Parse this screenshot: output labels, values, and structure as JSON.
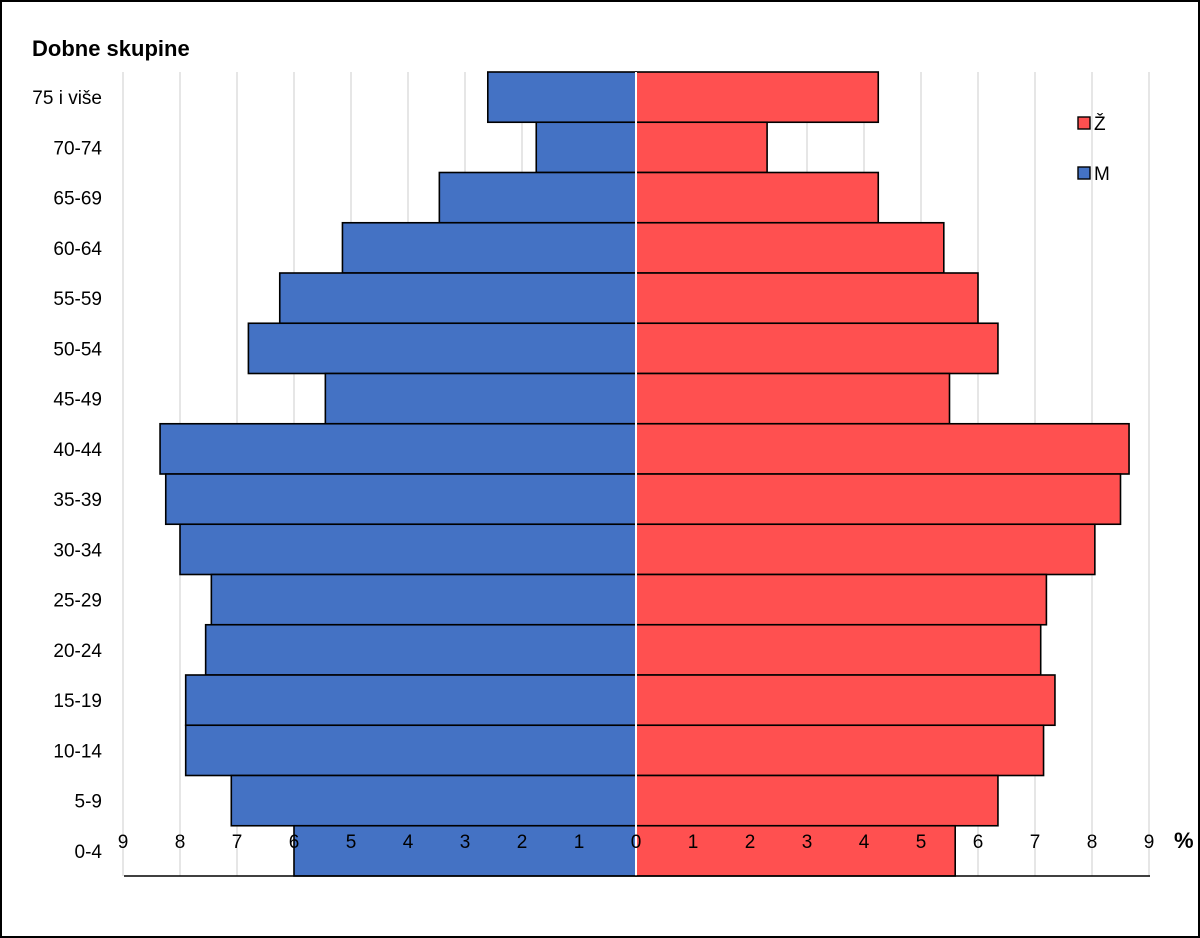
{
  "chart_data": {
    "type": "bar",
    "orientation": "horizontal-population-pyramid",
    "title": "Dobne skupine",
    "unit_label": "%",
    "categories": [
      "75 i više",
      "70-74",
      "65-69",
      "60-64",
      "55-59",
      "50-54",
      "45-49",
      "40-44",
      "35-39",
      "30-34",
      "25-29",
      "20-24",
      "15-19",
      "10-14",
      "5-9",
      "0-4"
    ],
    "series": [
      {
        "name": "M",
        "side": "left",
        "color": "#4472C4",
        "values": [
          2.6,
          1.75,
          3.45,
          5.15,
          6.25,
          6.8,
          5.45,
          8.35,
          8.25,
          8.0,
          7.45,
          7.55,
          7.9,
          7.9,
          7.1,
          6.0
        ]
      },
      {
        "name": "Ž",
        "side": "right",
        "color": "#FF5050",
        "values": [
          4.25,
          2.3,
          4.25,
          5.4,
          6.0,
          6.35,
          5.5,
          8.65,
          8.5,
          8.05,
          7.2,
          7.1,
          7.35,
          7.15,
          6.35,
          5.6
        ]
      }
    ],
    "xticks": [
      "9",
      "8",
      "7",
      "6",
      "5",
      "4",
      "3",
      "2",
      "1",
      "0",
      "1",
      "2",
      "3",
      "4",
      "5",
      "6",
      "7",
      "8",
      "9"
    ],
    "xlim": [
      -9,
      9
    ],
    "grid": true,
    "legend": {
      "placement": "top-right",
      "order": [
        "Ž",
        "M"
      ]
    }
  }
}
